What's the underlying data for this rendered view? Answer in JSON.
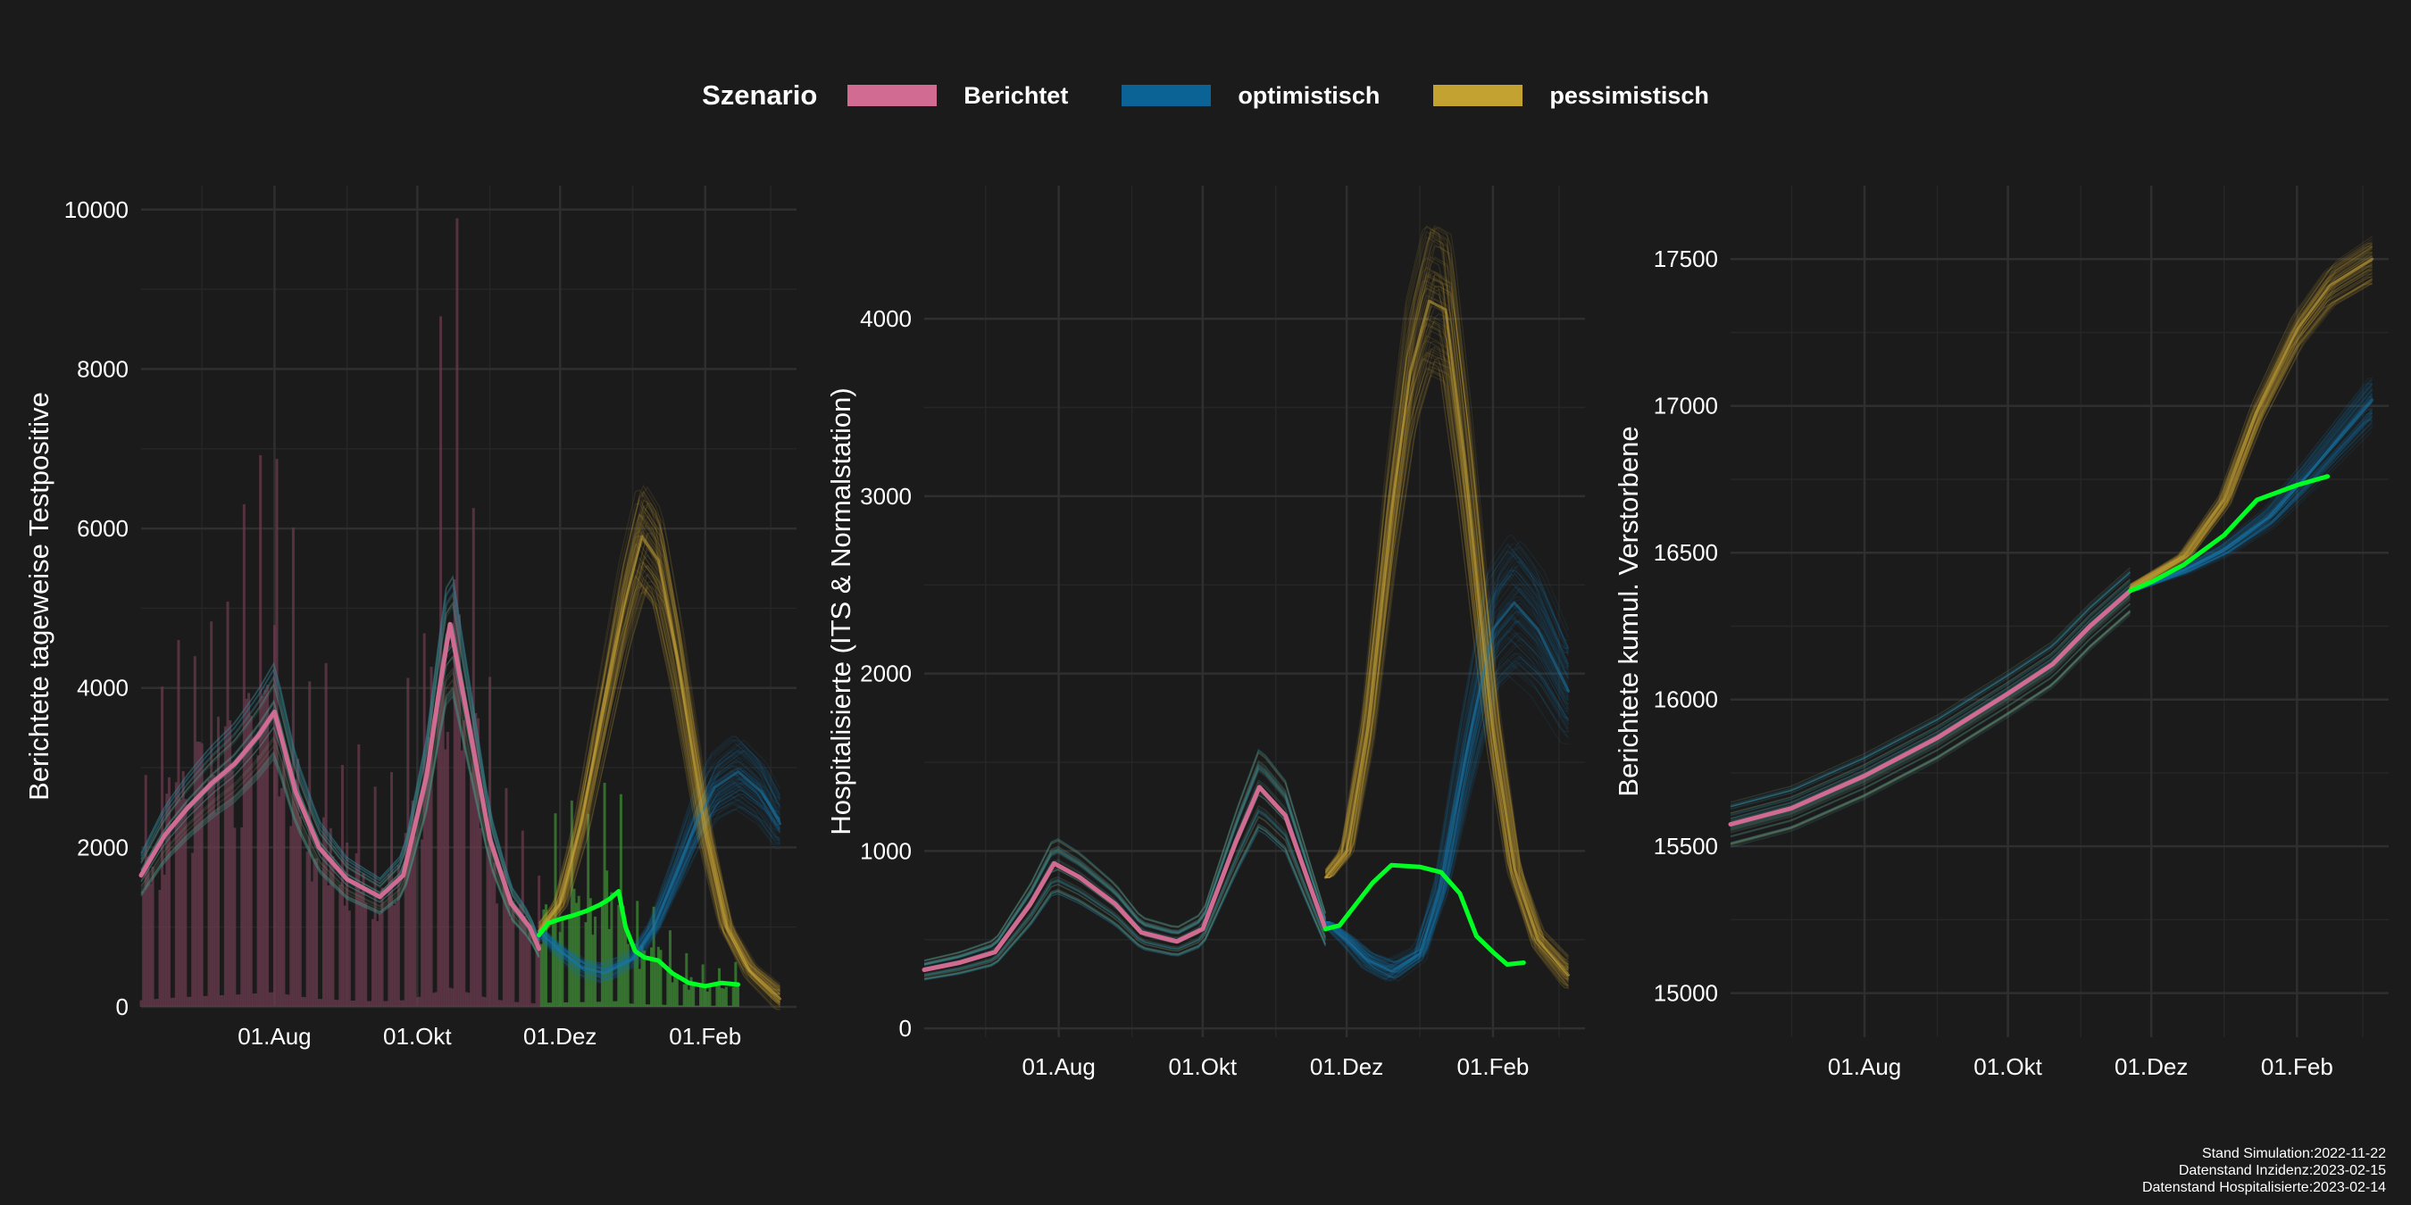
{
  "legend": {
    "title": "Szenario",
    "items": [
      {
        "label": "Berichtet",
        "color": "#d16b92"
      },
      {
        "label": "optimistisch",
        "color": "#0a6394"
      },
      {
        "label": "pessimistisch",
        "color": "#c4a232"
      }
    ]
  },
  "colors": {
    "reported": "#d16b92",
    "optimistic": "#1977a8",
    "pessimistic": "#c8a638",
    "observed": "#00ff22",
    "grid": "#2f2f2f",
    "background": "#1b1b1b"
  },
  "caption": {
    "lines": [
      "Stand Simulation:2022-11-22",
      "Datenstand Inzidenz:2023-02-15",
      "Datenstand Hospitalisierte:2023-02-14"
    ]
  },
  "chart_data": [
    {
      "type": "line",
      "ylabel": "Berichtete tageweise Testpositive",
      "xlabel": "",
      "xlim": [
        "2022-06-05",
        "2023-03-12"
      ],
      "ylim": [
        0,
        10300
      ],
      "x_ticks": [
        {
          "date": "2022-08-01",
          "label": "01.Aug"
        },
        {
          "date": "2022-10-01",
          "label": "01.Okt"
        },
        {
          "date": "2022-12-01",
          "label": "01.Dez"
        },
        {
          "date": "2023-02-01",
          "label": "01.Feb"
        }
      ],
      "y_ticks": [
        0,
        2000,
        4000,
        6000,
        8000,
        10000
      ],
      "series": [
        {
          "role": "reported",
          "x": [
            "2022-06-05",
            "2022-06-15",
            "2022-06-25",
            "2022-07-05",
            "2022-07-15",
            "2022-07-25",
            "2022-08-01",
            "2022-08-10",
            "2022-08-20",
            "2022-09-01",
            "2022-09-15",
            "2022-09-25",
            "2022-10-05",
            "2022-10-10",
            "2022-10-15",
            "2022-10-22",
            "2022-11-01",
            "2022-11-10",
            "2022-11-18",
            "2022-11-22"
          ],
          "y": [
            1650,
            2150,
            2500,
            2800,
            3050,
            3400,
            3700,
            2700,
            2000,
            1600,
            1380,
            1650,
            2900,
            3900,
            4800,
            3700,
            2100,
            1300,
            1000,
            730
          ]
        },
        {
          "role": "observed",
          "x": [
            "2022-11-22",
            "2022-11-26",
            "2022-12-01",
            "2022-12-07",
            "2022-12-12",
            "2022-12-18",
            "2022-12-22",
            "2022-12-26",
            "2022-12-29",
            "2023-01-02",
            "2023-01-06",
            "2023-01-12",
            "2023-01-18",
            "2023-01-25",
            "2023-02-01",
            "2023-02-08",
            "2023-02-15"
          ],
          "y": [
            900,
            1050,
            1100,
            1150,
            1200,
            1280,
            1350,
            1450,
            1000,
            700,
            620,
            580,
            420,
            300,
            260,
            300,
            280
          ]
        },
        {
          "role": "optimistic",
          "x": [
            "2022-11-22",
            "2022-12-01",
            "2022-12-10",
            "2022-12-20",
            "2023-01-01",
            "2023-01-10",
            "2023-01-20",
            "2023-01-28",
            "2023-02-05",
            "2023-02-15",
            "2023-02-25",
            "2023-03-05"
          ],
          "y": [
            950,
            700,
            500,
            420,
            600,
            1000,
            1700,
            2300,
            2750,
            2950,
            2700,
            2300
          ]
        },
        {
          "role": "pessimistic",
          "x": [
            "2022-11-22",
            "2022-12-01",
            "2022-12-10",
            "2022-12-20",
            "2022-12-28",
            "2023-01-05",
            "2023-01-12",
            "2023-01-20",
            "2023-02-01",
            "2023-02-10",
            "2023-02-20",
            "2023-03-05"
          ],
          "y": [
            950,
            1300,
            2300,
            3800,
            5000,
            5900,
            5600,
            4400,
            2200,
            1000,
            450,
            100
          ]
        }
      ]
    },
    {
      "type": "line",
      "ylabel": "Hospitalisierte (ITS & Normalstation)",
      "xlabel": "",
      "xlim": [
        "2022-06-05",
        "2023-03-12"
      ],
      "ylim": [
        -50,
        4750
      ],
      "x_ticks": [
        {
          "date": "2022-08-01",
          "label": "01.Aug"
        },
        {
          "date": "2022-10-01",
          "label": "01.Okt"
        },
        {
          "date": "2022-12-01",
          "label": "01.Dez"
        },
        {
          "date": "2023-02-01",
          "label": "01.Feb"
        }
      ],
      "y_ticks": [
        0,
        1000,
        2000,
        3000,
        4000
      ],
      "series": [
        {
          "role": "reported",
          "x": [
            "2022-06-05",
            "2022-06-20",
            "2022-07-05",
            "2022-07-20",
            "2022-07-30",
            "2022-08-10",
            "2022-08-25",
            "2022-09-05",
            "2022-09-20",
            "2022-10-01",
            "2022-10-15",
            "2022-10-25",
            "2022-11-05",
            "2022-11-15",
            "2022-11-22"
          ],
          "y": [
            330,
            370,
            430,
            700,
            930,
            850,
            700,
            540,
            490,
            560,
            1050,
            1360,
            1200,
            820,
            560
          ]
        },
        {
          "role": "observed",
          "x": [
            "2022-11-22",
            "2022-11-28",
            "2022-12-05",
            "2022-12-12",
            "2022-12-20",
            "2023-01-01",
            "2023-01-10",
            "2023-01-18",
            "2023-01-25",
            "2023-02-01",
            "2023-02-07",
            "2023-02-14"
          ],
          "y": [
            560,
            580,
            700,
            820,
            920,
            910,
            880,
            760,
            520,
            430,
            360,
            370
          ]
        },
        {
          "role": "optimistic",
          "x": [
            "2022-11-22",
            "2022-12-01",
            "2022-12-10",
            "2022-12-20",
            "2023-01-01",
            "2023-01-10",
            "2023-01-20",
            "2023-02-01",
            "2023-02-10",
            "2023-02-20",
            "2023-03-05"
          ],
          "y": [
            600,
            500,
            380,
            320,
            420,
            800,
            1500,
            2250,
            2400,
            2250,
            1900
          ]
        },
        {
          "role": "pessimistic",
          "x": [
            "2022-11-22",
            "2022-12-01",
            "2022-12-10",
            "2022-12-20",
            "2022-12-28",
            "2023-01-05",
            "2023-01-12",
            "2023-01-20",
            "2023-02-01",
            "2023-02-10",
            "2023-02-20",
            "2023-03-05"
          ],
          "y": [
            850,
            1000,
            1700,
            2900,
            3700,
            4100,
            4050,
            3200,
            1700,
            900,
            500,
            300
          ]
        }
      ]
    },
    {
      "type": "line",
      "ylabel": "Berichtete kumul. Verstorbene",
      "xlabel": "",
      "xlim": [
        "2022-06-05",
        "2023-03-12"
      ],
      "ylim": [
        14850,
        17750
      ],
      "x_ticks": [
        {
          "date": "2022-08-01",
          "label": "01.Aug"
        },
        {
          "date": "2022-10-01",
          "label": "01.Okt"
        },
        {
          "date": "2022-12-01",
          "label": "01.Dez"
        },
        {
          "date": "2023-02-01",
          "label": "01.Feb"
        }
      ],
      "y_ticks": [
        15000,
        15500,
        16000,
        16500,
        17000,
        17500
      ],
      "series": [
        {
          "role": "reported",
          "x": [
            "2022-06-05",
            "2022-07-01",
            "2022-08-01",
            "2022-09-01",
            "2022-10-01",
            "2022-10-20",
            "2022-11-05",
            "2022-11-22"
          ],
          "y": [
            15575,
            15630,
            15740,
            15870,
            16020,
            16120,
            16250,
            16370
          ]
        },
        {
          "role": "observed",
          "x": [
            "2022-11-22",
            "2022-12-01",
            "2022-12-15",
            "2023-01-01",
            "2023-01-15",
            "2023-02-01",
            "2023-02-14"
          ],
          "y": [
            16370,
            16400,
            16460,
            16560,
            16680,
            16730,
            16760
          ]
        },
        {
          "role": "optimistic",
          "x": [
            "2022-11-22",
            "2022-12-15",
            "2023-01-01",
            "2023-01-20",
            "2023-02-05",
            "2023-02-20",
            "2023-03-05"
          ],
          "y": [
            16370,
            16440,
            16510,
            16620,
            16760,
            16900,
            17020
          ]
        },
        {
          "role": "pessimistic",
          "x": [
            "2022-11-22",
            "2022-12-15",
            "2023-01-01",
            "2023-01-15",
            "2023-02-01",
            "2023-02-15",
            "2023-03-05"
          ],
          "y": [
            16380,
            16490,
            16680,
            16980,
            17260,
            17410,
            17500
          ]
        }
      ]
    }
  ]
}
